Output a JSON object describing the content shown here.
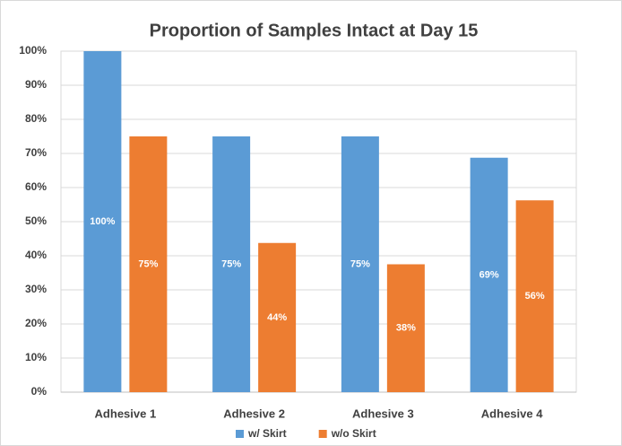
{
  "chart_data": {
    "type": "bar",
    "title": "Proportion of Samples Intact at Day 15",
    "categories": [
      "Adhesive 1",
      "Adhesive 2",
      "Adhesive 3",
      "Adhesive 4"
    ],
    "series": [
      {
        "name": "w/ Skirt",
        "color": "#5b9bd5",
        "values": [
          100,
          75,
          75,
          68.75
        ],
        "value_labels": [
          "100%",
          "75%",
          "75%",
          "69%"
        ]
      },
      {
        "name": "w/o Skirt",
        "color": "#ed7d31",
        "values": [
          75,
          43.75,
          37.5,
          56.25
        ],
        "value_labels": [
          "75%",
          "44%",
          "38%",
          "56%"
        ]
      }
    ],
    "ylim": [
      0,
      100
    ],
    "yticks": [
      {
        "value": 0,
        "label": "0%"
      },
      {
        "value": 10,
        "label": "10%"
      },
      {
        "value": 20,
        "label": "20%"
      },
      {
        "value": 30,
        "label": "30%"
      },
      {
        "value": 40,
        "label": "40%"
      },
      {
        "value": 50,
        "label": "50%"
      },
      {
        "value": 60,
        "label": "60%"
      },
      {
        "value": 70,
        "label": "70%"
      },
      {
        "value": 80,
        "label": "80%"
      },
      {
        "value": 90,
        "label": "90%"
      },
      {
        "value": 100,
        "label": "100%"
      }
    ],
    "grid": true,
    "legend": "bottom"
  }
}
